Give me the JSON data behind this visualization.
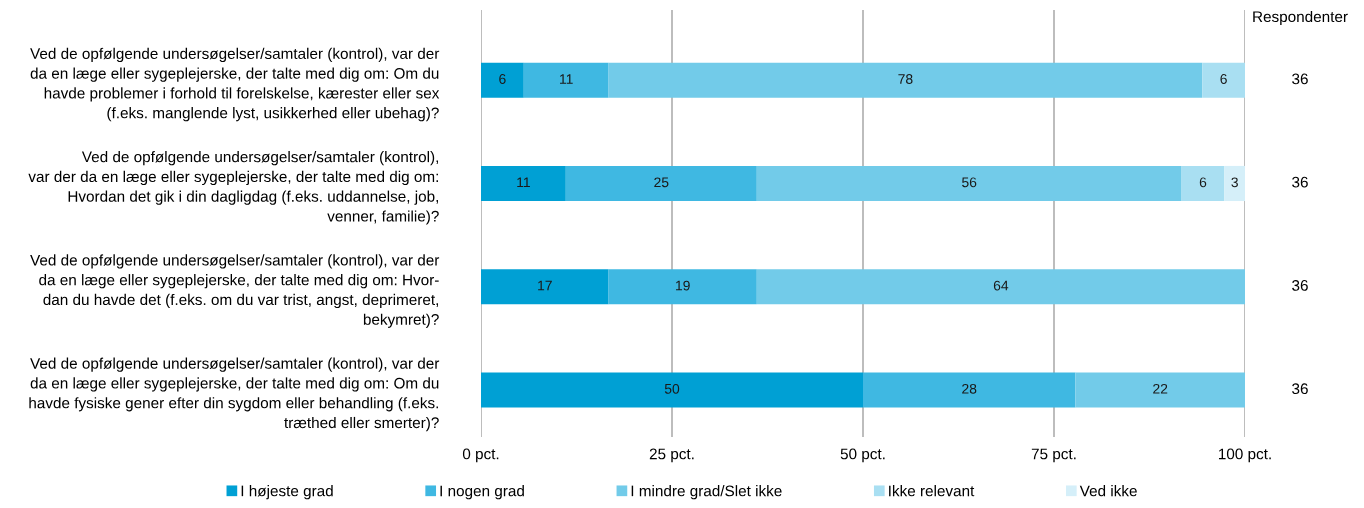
{
  "chart_data": {
    "type": "bar",
    "orientation": "horizontal",
    "stacked": true,
    "categories": [
      "Ved de opfølgende undersøgelser/samtaler (kontrol), var der\nda en læge eller sygeplejerske, der talte med dig om: Om du\nhavde problemer i forhold til forelskelse, kærester eller sex\n(f.eks. manglende lyst, usikkerhed eller ubehag)?",
      "Ved de opfølgende undersøgelser/samtaler (kontrol),\nvar der da en læge eller sygeplejerske, der talte med dig om:\nHvordan det gik i din dagligdag (f.eks. uddannelse, job,\nvenner, familie)?",
      "Ved de opfølgende undersøgelser/samtaler (kontrol), var der\nda en læge eller sygeplejerske, der talte med dig om: Hvor-\ndan du havde det (f.eks. om du var trist, angst, deprimeret,\nbekymret)?",
      "Ved de opfølgende undersøgelser/samtaler (kontrol), var der\nda en læge eller sygeplejerske, der talte med dig om: Om du\nhavde fysiske gener efter din sygdom eller behandling (f.eks.\ntræthed eller smerter)?"
    ],
    "series": [
      {
        "name": "I højeste grad",
        "color": "#00a0d4",
        "values": [
          5.6,
          11.1,
          16.7,
          50
        ],
        "value_labels": [
          "6",
          "11",
          "17",
          "50"
        ]
      },
      {
        "name": "I nogen grad",
        "color": "#3fb8e2",
        "values": [
          11.1,
          25,
          19.4,
          27.8
        ],
        "value_labels": [
          "11",
          "25",
          "19",
          "28"
        ]
      },
      {
        "name": "I mindre grad/Slet ikke",
        "color": "#72cbe9",
        "values": [
          77.7,
          55.6,
          63.9,
          22.2
        ],
        "value_labels": [
          "78",
          "56",
          "64",
          "22"
        ]
      },
      {
        "name": "Ikke relevant",
        "color": "#a9dff2",
        "values": [
          5.6,
          5.6,
          null,
          null
        ],
        "value_labels": [
          "6",
          "6",
          null,
          null
        ]
      },
      {
        "name": "Ved ikke",
        "color": "#d5eff9",
        "values": [
          null,
          2.7,
          null,
          null
        ],
        "value_labels": [
          null,
          "3",
          null,
          null
        ]
      }
    ],
    "xlim": [
      0,
      100
    ],
    "xticks": [
      {
        "value": 0,
        "label": "0 pct."
      },
      {
        "value": 25,
        "label": "25 pct."
      },
      {
        "value": 50,
        "label": "50 pct."
      },
      {
        "value": 75,
        "label": "75 pct."
      },
      {
        "value": 100,
        "label": "100 pct."
      }
    ],
    "grid": "x",
    "legend": "bottom",
    "annotations": [
      "Respondenter",
      "36",
      "36",
      "36",
      "36"
    ]
  }
}
